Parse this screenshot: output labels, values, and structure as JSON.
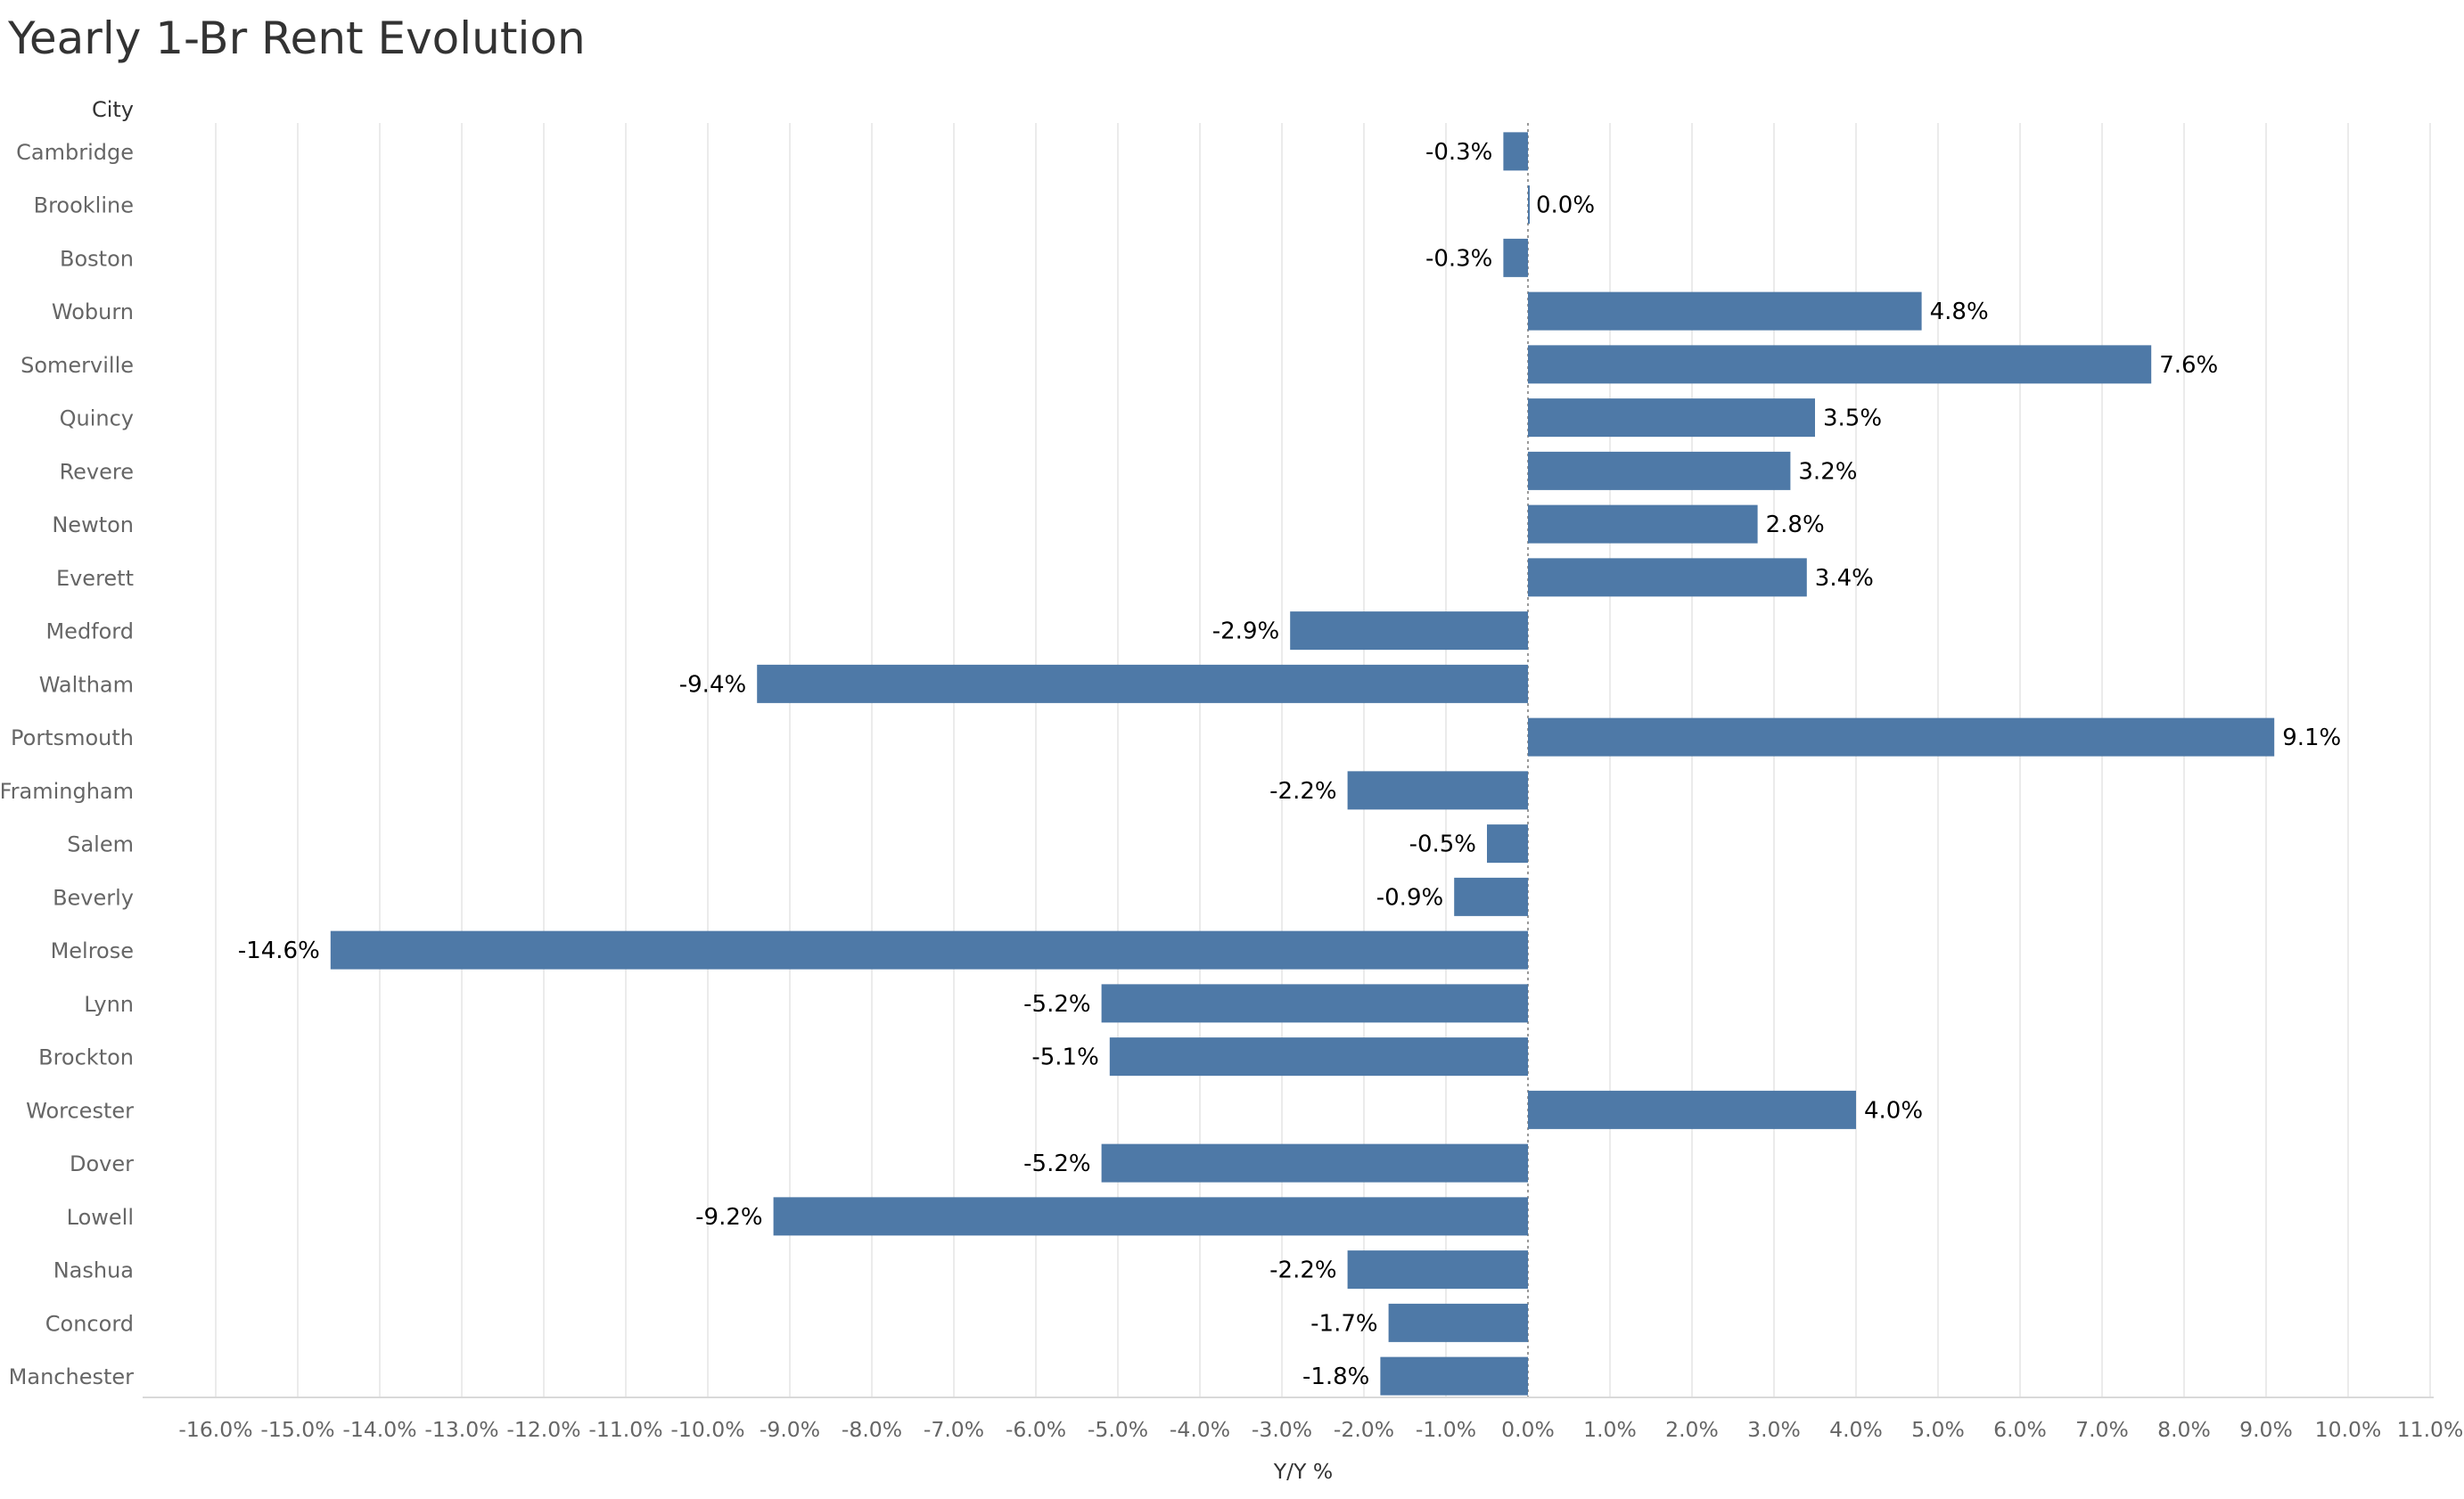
{
  "colors": {
    "bar": "#4e79a7",
    "grid": "#ebebeb",
    "zero_line": "#9a9a9a",
    "axis": "#d9d9d9"
  },
  "chart_data": {
    "type": "bar",
    "orientation": "horizontal",
    "title": "Yearly 1-Br Rent Evolution",
    "row_header": "City",
    "xlabel": "Y/Y %",
    "xlim": [
      -16.0,
      11.0
    ],
    "x_tick_step": 1.0,
    "grid": true,
    "categories": [
      "Cambridge",
      "Brookline",
      "Boston",
      "Woburn",
      "Somerville",
      "Quincy",
      "Revere",
      "Newton",
      "Everett",
      "Medford",
      "Waltham",
      "Portsmouth",
      "Framingham",
      "Salem",
      "Beverly",
      "Melrose",
      "Lynn",
      "Brockton",
      "Worcester",
      "Dover",
      "Lowell",
      "Nashua",
      "Concord",
      "Manchester"
    ],
    "values": [
      -0.3,
      0.0,
      -0.3,
      4.8,
      7.6,
      3.5,
      3.2,
      2.8,
      3.4,
      -2.9,
      -9.4,
      9.1,
      -2.2,
      -0.5,
      -0.9,
      -14.6,
      -5.2,
      -5.1,
      4.0,
      -5.2,
      -9.2,
      -2.2,
      -1.7,
      -1.8
    ]
  }
}
